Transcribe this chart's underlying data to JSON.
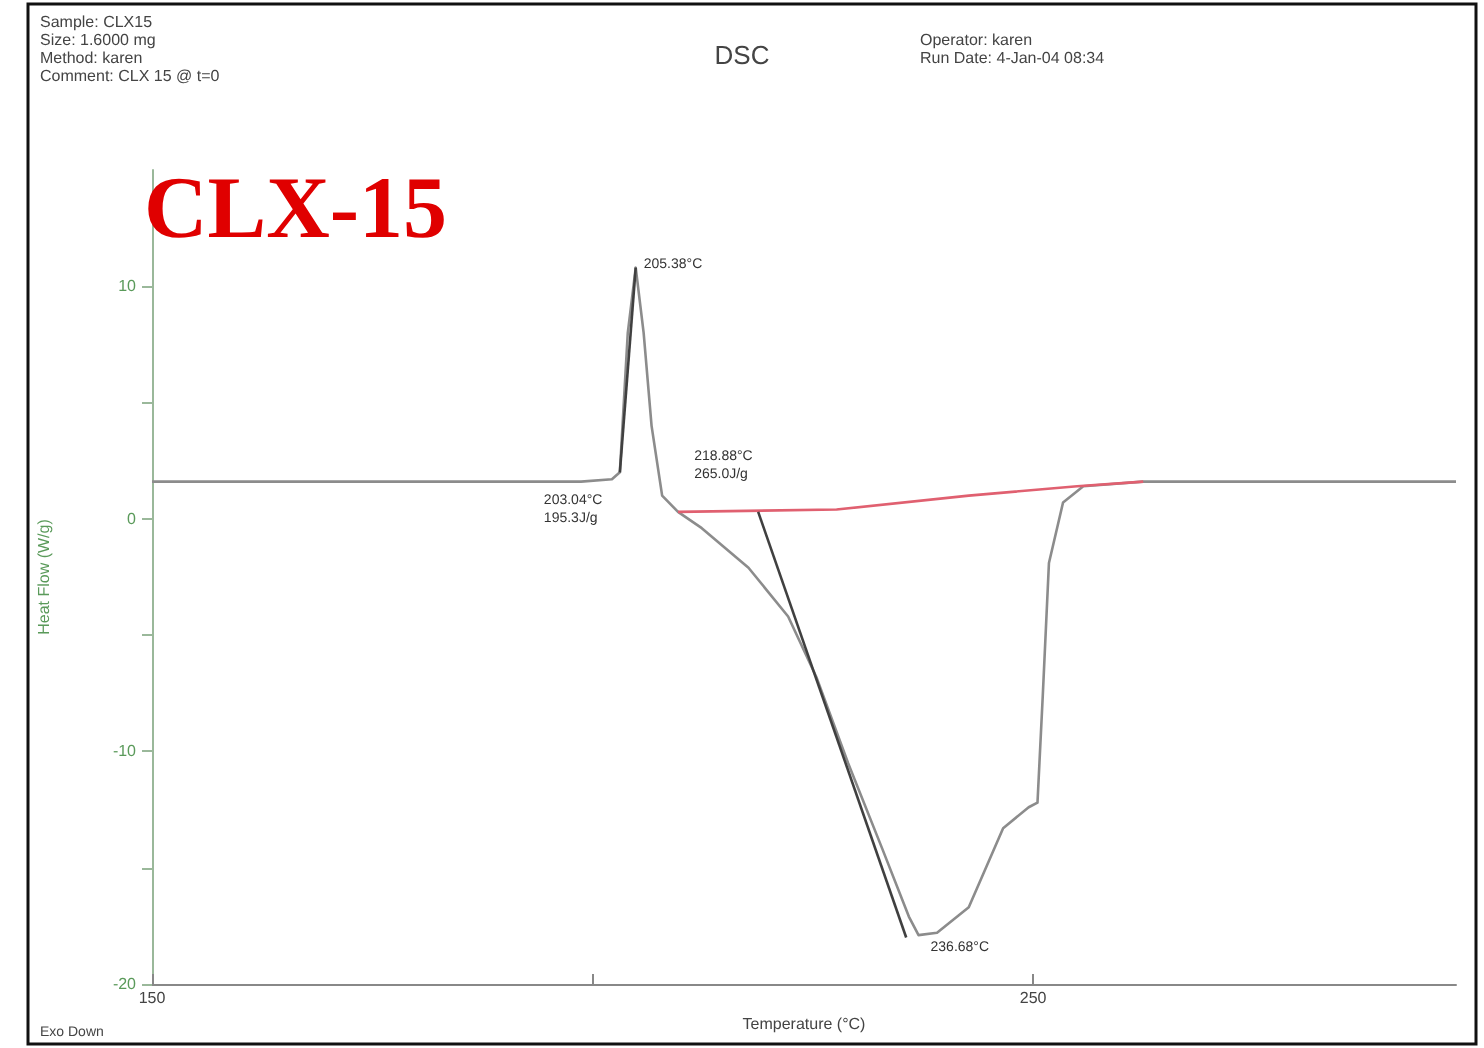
{
  "chart_data": {
    "type": "line",
    "title": "DSC",
    "xlabel": "Temperature (°C)",
    "ylabel": "Heat Flow (W/g)",
    "annotations": [
      "Sample: CLX15",
      "Size: 1.6000 mg",
      "Method: karen",
      "Comment: CLX 15 @ t=0",
      "Operator: karen",
      "Run Date: 4-Jan-04 08:34",
      "CLX-15",
      "Exo Down",
      {
        "text": "205.38°C",
        "x": 204.9,
        "y": 10.8
      },
      {
        "text": "203.04°C\n195.3J/g",
        "x": 203.1,
        "y": 2
      },
      {
        "text": "218.88°C\n265.0J/g",
        "x": 218.8,
        "y": 0.3
      },
      {
        "text": "236.68°C",
        "x": 237,
        "y": -17.9
      }
    ],
    "xlim": [
      150,
      298
    ],
    "xticks": [
      150,
      {
        "value": 200,
        "label": null
      },
      250
    ],
    "ylim": [
      -20,
      15
    ],
    "yticks": [
      -20,
      {
        "value": -15,
        "label": null
      },
      -10,
      {
        "value": -5,
        "label": null
      },
      0,
      {
        "value": 5,
        "label": null
      },
      10
    ],
    "grid": false,
    "marker": "none",
    "line_style": "solid",
    "series": [
      {
        "color": "#8c8c8c",
        "x": [
          150,
          198.7,
          202.2,
          203.1,
          204,
          204.9,
          205.8,
          206.7,
          207.9,
          209.7,
          212.4,
          217.7,
          222.2,
          225.4,
          229,
          232.9,
          235.9,
          237,
          239.1,
          242.7,
          246.6,
          249.5,
          250.5,
          251.1,
          251.8,
          253.4,
          255.7,
          262.5,
          298
        ],
        "values": [
          1.6,
          1.6,
          1.7,
          2,
          8,
          10.8,
          8,
          4,
          1,
          0.3,
          -0.4,
          -2.1,
          -4.2,
          -6.8,
          -10.5,
          -14.2,
          -17.1,
          -17.9,
          -17.8,
          -16.7,
          -13.3,
          -12.4,
          -12.2,
          -7.6,
          -1.9,
          0.7,
          1.4,
          1.6,
          1.6
        ]
      },
      {
        "color": "#e06070",
        "x": [
          209.7,
          227.7,
          242.7,
          255,
          262.5
        ],
        "values": [
          0.3,
          0.4,
          1,
          1.4,
          1.6
        ]
      },
      {
        "color": "#404040",
        "x": [
          203.1,
          204.9
        ],
        "values": [
          2,
          10.8
        ]
      },
      {
        "color": "#404040",
        "x": [
          218.8,
          235.6
        ],
        "values": [
          0.3,
          -18
        ]
      }
    ]
  }
}
